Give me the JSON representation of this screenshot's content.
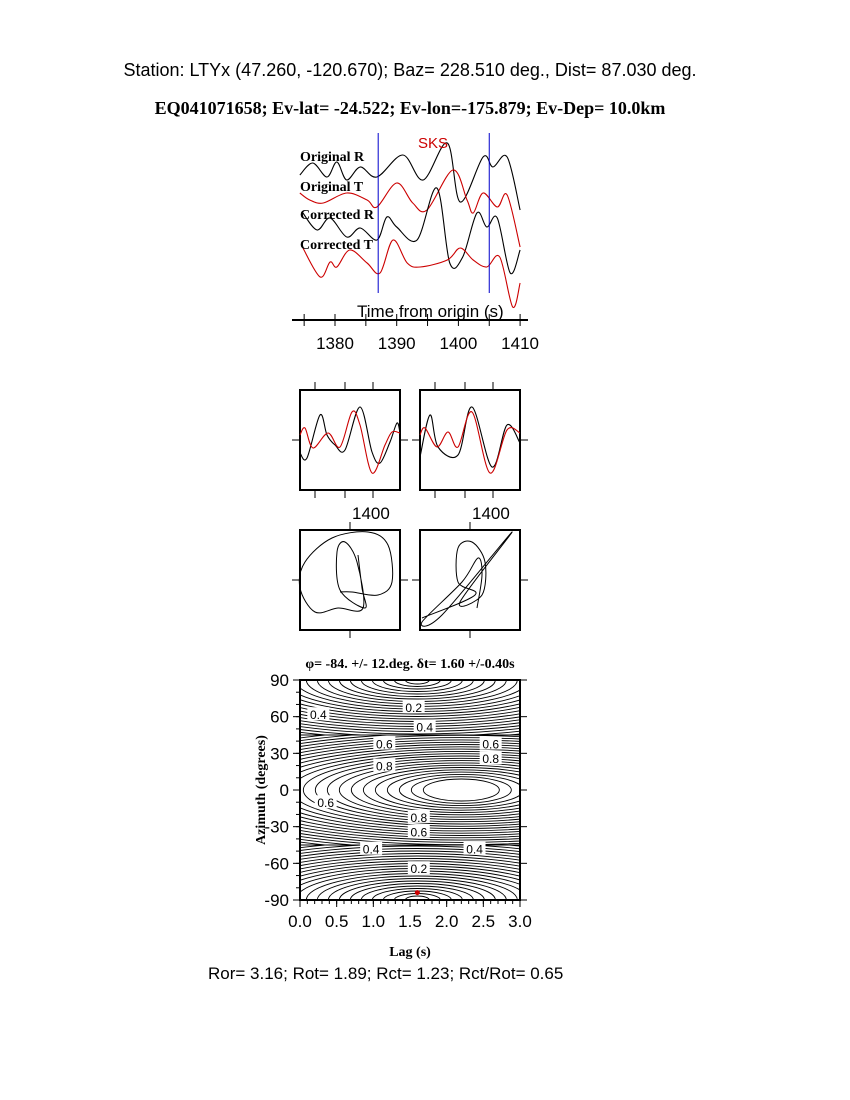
{
  "header": {
    "station_line": "Station: LTYx (47.260, -120.670); Baz=  228.510 deg., Dist=   87.030 deg.",
    "event_line": "EQ041071658; Ev-lat= -24.522; Ev-lon=-175.879; Ev-Dep= 10.0km"
  },
  "footer": "Ror= 3.16; Rot= 1.89; Rct= 1.23; Rct/Rot= 0.65",
  "colors": {
    "black": "#000000",
    "red": "#cc0000",
    "marker_lines": "#0000cc"
  },
  "chart_data": [
    {
      "type": "line",
      "xlabel": "Time from origin (s)",
      "x_ticks": [
        1380,
        1390,
        1400,
        1410
      ],
      "xlim": [
        1373,
        1410
      ],
      "phase_label": "SKS",
      "window_markers": [
        1387,
        1405
      ],
      "series": [
        {
          "name": "Original R",
          "color": "#000000",
          "points": [
            [
              1374.3,
              -0.25
            ],
            [
              1376.4,
              0.35
            ],
            [
              1378.7,
              -0.35
            ],
            [
              1380.3,
              0.4
            ],
            [
              1381.9,
              -0.5
            ],
            [
              1384.1,
              0.15
            ],
            [
              1386.8,
              -0.35
            ],
            [
              1391,
              0.75
            ],
            [
              1394.3,
              -0.5
            ],
            [
              1398.2,
              1.35
            ],
            [
              1400.3,
              -1.6
            ],
            [
              1404,
              0.65
            ],
            [
              1405.6,
              0.15
            ],
            [
              1407.9,
              0.65
            ],
            [
              1410,
              -2
            ]
          ]
        },
        {
          "name": "Original T",
          "color": "#cc0000",
          "points": [
            [
              1374.3,
              0.1
            ],
            [
              1375.9,
              -0.25
            ],
            [
              1378.1,
              -0.4
            ],
            [
              1381.9,
              0.1
            ],
            [
              1385.2,
              -0.25
            ],
            [
              1386.8,
              -0.6
            ],
            [
              1390,
              0.6
            ],
            [
              1392.6,
              -0.4
            ],
            [
              1394.9,
              -0.75
            ],
            [
              1399.1,
              1.25
            ],
            [
              1401.4,
              -0.25
            ],
            [
              1402.4,
              -0.9
            ],
            [
              1404,
              0.1
            ],
            [
              1406.3,
              -0.6
            ],
            [
              1407.9,
              0
            ],
            [
              1410,
              -2.6
            ]
          ]
        },
        {
          "name": "Corrected R",
          "color": "#000000",
          "points": [
            [
              1374.8,
              0.35
            ],
            [
              1377.1,
              -0.5
            ],
            [
              1379.2,
              0.1
            ],
            [
              1381.9,
              -0.85
            ],
            [
              1384.1,
              -0.4
            ],
            [
              1386.8,
              -1
            ],
            [
              1388.4,
              0.15
            ],
            [
              1390,
              -0.35
            ],
            [
              1393.3,
              -1
            ],
            [
              1396.5,
              1.6
            ],
            [
              1398.6,
              -2.15
            ],
            [
              1400.7,
              -1.85
            ],
            [
              1403,
              0.35
            ],
            [
              1404.6,
              -0.35
            ],
            [
              1406.3,
              0.1
            ],
            [
              1408.4,
              -2.65
            ],
            [
              1410,
              -1.5
            ]
          ]
        },
        {
          "name": "Corrected T",
          "color": "#cc0000",
          "points": [
            [
              1374.8,
              0.1
            ],
            [
              1377.6,
              -1.35
            ],
            [
              1379.2,
              -0.6
            ],
            [
              1380.3,
              -0.85
            ],
            [
              1382.4,
              0
            ],
            [
              1385.2,
              -0.65
            ],
            [
              1387.3,
              -1.15
            ],
            [
              1389.4,
              0.5
            ],
            [
              1391.7,
              -0.65
            ],
            [
              1393.8,
              -0.85
            ],
            [
              1398.2,
              -0.5
            ],
            [
              1400.3,
              0.1
            ],
            [
              1402.4,
              -0.5
            ],
            [
              1404.6,
              -0.85
            ],
            [
              1406.7,
              -0.35
            ],
            [
              1408.8,
              -2.85
            ],
            [
              1410,
              -1.65
            ]
          ]
        }
      ]
    },
    {
      "type": "line",
      "panel": "waveform-comparison-original",
      "x_tick_label": "1400",
      "series": [
        {
          "color": "#000000",
          "points": [
            [
              0,
              -0.26
            ],
            [
              0.07,
              -0.36
            ],
            [
              0.2,
              0.5
            ],
            [
              0.27,
              0.1
            ],
            [
              0.35,
              -0.1
            ],
            [
              0.45,
              -0.2
            ],
            [
              0.6,
              0.66
            ],
            [
              0.72,
              -0.24
            ],
            [
              0.8,
              -0.46
            ],
            [
              0.9,
              -0.04
            ],
            [
              0.97,
              0.34
            ],
            [
              1,
              0.14
            ]
          ]
        },
        {
          "color": "#cc0000",
          "points": [
            [
              0,
              0.1
            ],
            [
              0.05,
              0.24
            ],
            [
              0.13,
              -0.16
            ],
            [
              0.28,
              0.14
            ],
            [
              0.4,
              -0.14
            ],
            [
              0.52,
              0.56
            ],
            [
              0.6,
              0.3
            ],
            [
              0.72,
              -0.66
            ],
            [
              0.85,
              -0.1
            ],
            [
              0.92,
              0.16
            ],
            [
              1,
              0.14
            ]
          ]
        }
      ]
    },
    {
      "type": "line",
      "panel": "waveform-comparison-corrected",
      "x_tick_label": "1400",
      "series": [
        {
          "color": "#000000",
          "points": [
            [
              0,
              -0.34
            ],
            [
              0.1,
              0.5
            ],
            [
              0.18,
              -0.14
            ],
            [
              0.38,
              -0.3
            ],
            [
              0.52,
              0.66
            ],
            [
              0.72,
              -0.54
            ],
            [
              0.87,
              0.3
            ],
            [
              1,
              -0.06
            ]
          ]
        },
        {
          "color": "#cc0000",
          "points": [
            [
              0,
              0.1
            ],
            [
              0.05,
              0.24
            ],
            [
              0.17,
              -0.14
            ],
            [
              0.28,
              0.16
            ],
            [
              0.38,
              -0.14
            ],
            [
              0.52,
              0.56
            ],
            [
              0.7,
              -0.66
            ],
            [
              0.87,
              0.2
            ],
            [
              1,
              0.14
            ]
          ]
        }
      ]
    },
    {
      "type": "scatter",
      "panel": "particle-motion-original",
      "points": [
        [
          0.16,
          0.5
        ],
        [
          0.24,
          -0.16
        ],
        [
          0.3,
          -0.56
        ],
        [
          -0.2,
          -0.2
        ],
        [
          -0.26,
          0.56
        ],
        [
          -0.1,
          0.76
        ],
        [
          0.14,
          0.36
        ],
        [
          0.26,
          -0.56
        ],
        [
          -0.24,
          -0.56
        ],
        [
          -0.7,
          -0.64
        ],
        [
          -1,
          -0.16
        ],
        [
          -0.9,
          0.36
        ],
        [
          -0.36,
          0.84
        ],
        [
          0.36,
          0.96
        ],
        [
          0.76,
          0.7
        ],
        [
          0.84,
          -0.04
        ],
        [
          0.56,
          -0.3
        ],
        [
          0.04,
          -0.24
        ],
        [
          -0.2,
          -0.24
        ]
      ]
    },
    {
      "type": "scatter",
      "panel": "particle-motion-corrected",
      "points": [
        [
          0.14,
          -0.56
        ],
        [
          0.24,
          0.1
        ],
        [
          0.16,
          0.44
        ],
        [
          -0.16,
          -0.04
        ],
        [
          -0.96,
          -0.84
        ],
        [
          -0.56,
          -0.7
        ],
        [
          0.84,
          0.96
        ],
        [
          -0.2,
          -0.44
        ],
        [
          0.24,
          -0.3
        ],
        [
          0.3,
          0.36
        ],
        [
          0.04,
          0.76
        ],
        [
          -0.24,
          0.64
        ],
        [
          -0.24,
          -0.04
        ],
        [
          0.1,
          -0.3
        ],
        [
          -0.96,
          -0.76
        ]
      ]
    },
    {
      "type": "heatmap",
      "title": "φ= -84. +/- 12.deg. δt= 1.60 +/-0.40s",
      "xlabel": "Lag (s)",
      "ylabel": "Azimuth (degrees)",
      "xlim": [
        0,
        3
      ],
      "ylim": [
        -90,
        90
      ],
      "x_ticks": [
        "0.0",
        "0.5",
        "1.0",
        "1.5",
        "2.0",
        "2.5",
        "3.0"
      ],
      "y_ticks": [
        "90",
        "60",
        "30",
        "0",
        "-30",
        "-60",
        "-90"
      ],
      "maximum_center": [
        2.2,
        0
      ],
      "best_fit": {
        "lag": 1.6,
        "azimuth": -84,
        "color": "#cc0000"
      },
      "contour_labels": [
        {
          "text": "0.2",
          "lag": 1.55,
          "az": 68
        },
        {
          "text": "0.4",
          "lag": 1.7,
          "az": 52
        },
        {
          "text": "0.4",
          "lag": 0.25,
          "az": 62
        },
        {
          "text": "0.6",
          "lag": 1.15,
          "az": 38
        },
        {
          "text": "0.6",
          "lag": 2.6,
          "az": 38
        },
        {
          "text": "0.8",
          "lag": 2.6,
          "az": 26
        },
        {
          "text": "0.8",
          "lag": 1.15,
          "az": 20
        },
        {
          "text": "0.6",
          "lag": 0.35,
          "az": -10
        },
        {
          "text": "0.8",
          "lag": 1.62,
          "az": -22
        },
        {
          "text": "0.6",
          "lag": 1.62,
          "az": -34
        },
        {
          "text": "0.4",
          "lag": 0.97,
          "az": -48
        },
        {
          "text": "0.4",
          "lag": 2.38,
          "az": -48
        },
        {
          "text": "0.2",
          "lag": 1.62,
          "az": -64
        }
      ]
    }
  ]
}
